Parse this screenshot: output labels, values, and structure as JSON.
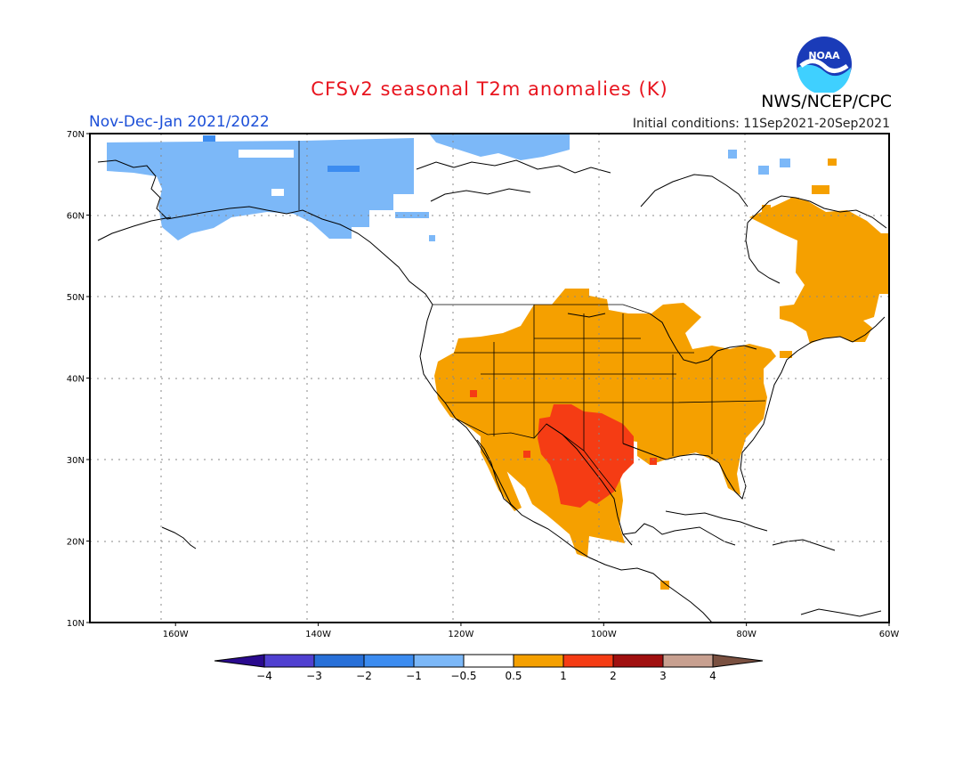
{
  "title": "CFSv2 seasonal T2m anomalies (K)",
  "season": "Nov-Dec-Jan 2021/2022",
  "initial_conditions": "Initial conditions: 11Sep2021-20Sep2021",
  "agency": "NWS/NCEP/CPC",
  "logo_text": "NOAA",
  "map": {
    "lon_range": [
      -172,
      -60
    ],
    "lat_range": [
      10,
      70
    ],
    "lon_ticks": [
      {
        "value": -160,
        "label": "160W"
      },
      {
        "value": -140,
        "label": "140W"
      },
      {
        "value": -120,
        "label": "120W"
      },
      {
        "value": -100,
        "label": "100W"
      },
      {
        "value": -80,
        "label": "80W"
      },
      {
        "value": -60,
        "label": "60W"
      }
    ],
    "lat_ticks": [
      {
        "value": 10,
        "label": "10N"
      },
      {
        "value": 20,
        "label": "20N"
      },
      {
        "value": 30,
        "label": "30N"
      },
      {
        "value": 40,
        "label": "40N"
      },
      {
        "value": 50,
        "label": "50N"
      },
      {
        "value": 60,
        "label": "60N"
      },
      {
        "value": 70,
        "label": "70N"
      }
    ],
    "colors": {
      "light_blue": "#7cb8f8",
      "mid_blue": "#3c8cf0",
      "orange": "#f5a000",
      "red_orange": "#f53c14",
      "coast": "#000000",
      "grid": "#888888"
    }
  },
  "colorbar": {
    "labels": [
      "−4",
      "−3",
      "−2",
      "−1",
      "−0.5",
      "0.5",
      "1",
      "2",
      "3",
      "4"
    ],
    "colors": [
      "#2a0a8e",
      "#5040d0",
      "#2870d8",
      "#3c8cf0",
      "#7cb8f8",
      "#ffffff",
      "#f5a000",
      "#f53c14",
      "#a01010",
      "#c8a090",
      "#7a5040"
    ]
  }
}
